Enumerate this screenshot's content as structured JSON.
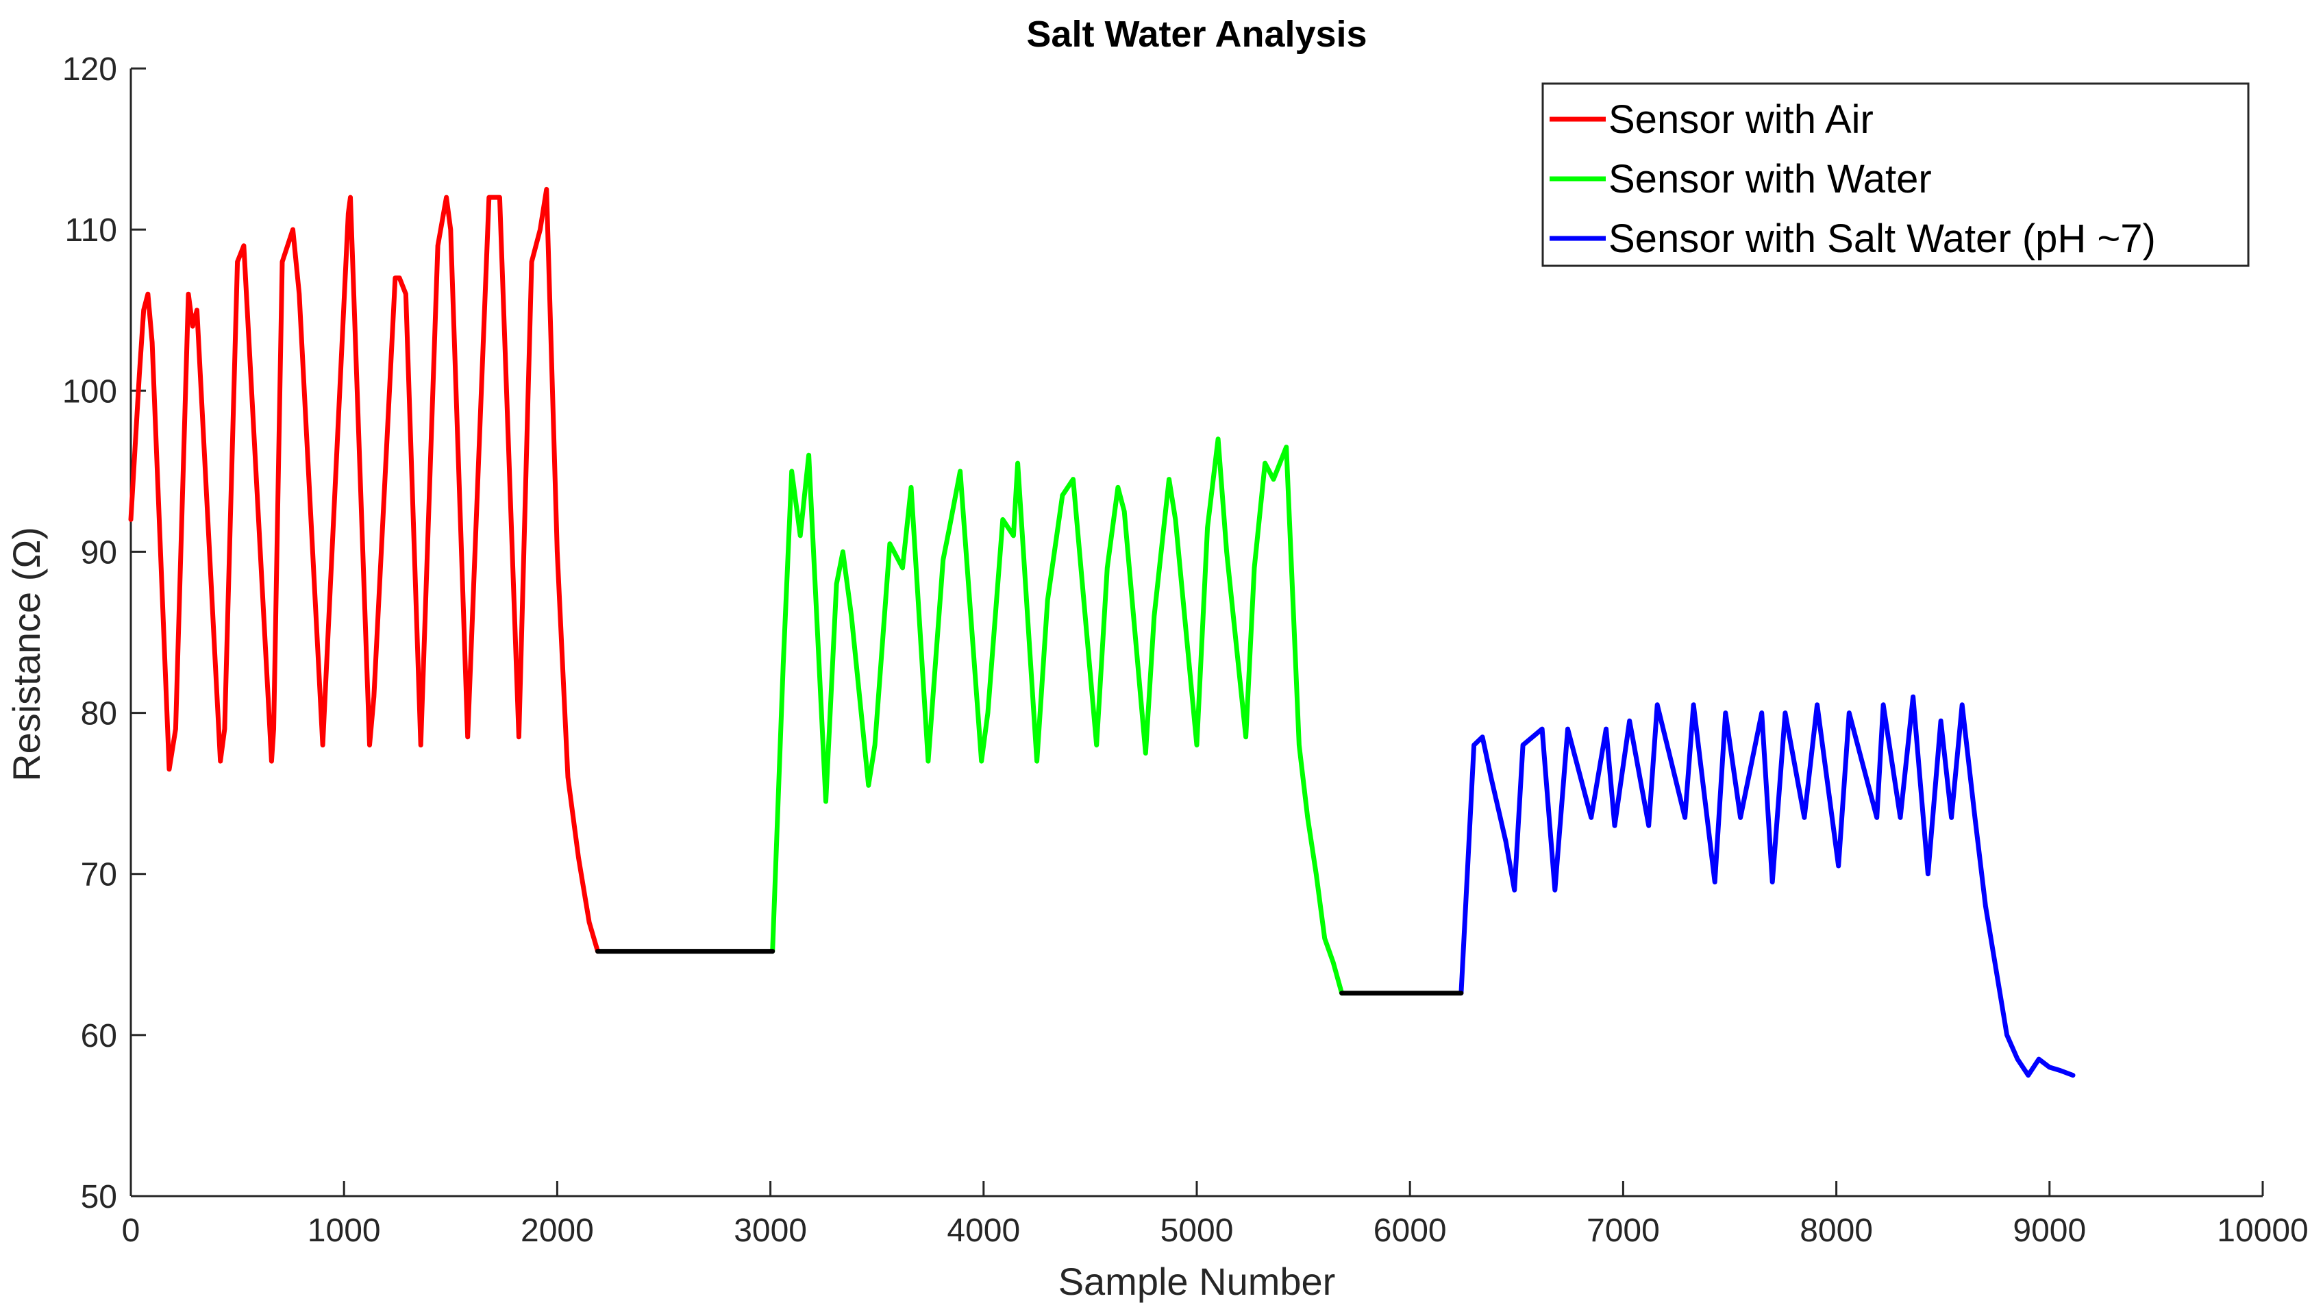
{
  "chart_data": {
    "type": "line",
    "title": "Salt Water Analysis",
    "xlabel": "Sample Number",
    "ylabel": "Resistance (Ω)",
    "xlim": [
      0,
      10000
    ],
    "ylim": [
      50,
      120
    ],
    "xticks": [
      0,
      1000,
      2000,
      3000,
      4000,
      5000,
      6000,
      7000,
      8000,
      9000,
      10000
    ],
    "yticks": [
      50,
      60,
      70,
      80,
      90,
      100,
      110,
      120
    ],
    "grid": false,
    "legend_position": "top-right",
    "series": [
      {
        "name": "Sensor with Air",
        "color": "#ff0000",
        "x": [
          0,
          40,
          60,
          80,
          100,
          180,
          210,
          270,
          290,
          310,
          420,
          440,
          500,
          530,
          660,
          670,
          710,
          760,
          790,
          900,
          1020,
          1030,
          1120,
          1140,
          1240,
          1260,
          1290,
          1360,
          1440,
          1480,
          1500,
          1580,
          1680,
          1730,
          1820,
          1880,
          1920,
          1950,
          2000,
          2050,
          2100,
          2150,
          2190
        ],
        "y": [
          92,
          101,
          105,
          106,
          103,
          76.5,
          79,
          106,
          104,
          105,
          77,
          79,
          108,
          109,
          77,
          79,
          108,
          110,
          106,
          78,
          111,
          112,
          78,
          81,
          107,
          107,
          106,
          78,
          109,
          112,
          110,
          78.5,
          112,
          112,
          78.5,
          108,
          110,
          112.5,
          90,
          76,
          71,
          67,
          65.2
        ]
      },
      {
        "name": "Sensor with Water",
        "color": "#00ff00",
        "x": [
          3010,
          3060,
          3100,
          3140,
          3180,
          3260,
          3310,
          3340,
          3380,
          3460,
          3490,
          3560,
          3620,
          3660,
          3740,
          3810,
          3840,
          3890,
          3990,
          4020,
          4090,
          4140,
          4160,
          4250,
          4300,
          4370,
          4420,
          4530,
          4580,
          4630,
          4660,
          4760,
          4800,
          4870,
          4900,
          5000,
          5050,
          5100,
          5140,
          5230,
          5270,
          5320,
          5360,
          5420,
          5480,
          5520,
          5560,
          5600,
          5640,
          5680
        ],
        "y": [
          65.2,
          83,
          95,
          91,
          96,
          74.5,
          88,
          90,
          86,
          75.5,
          78,
          90.5,
          89,
          94,
          77,
          89.5,
          91.5,
          95,
          77,
          80,
          92,
          91,
          95.5,
          77,
          87,
          93.5,
          94.5,
          78,
          89,
          94,
          92.5,
          77.5,
          86,
          94.5,
          92,
          78,
          91.5,
          97,
          90,
          78.5,
          89,
          95.5,
          94.5,
          96.5,
          78,
          73.5,
          70,
          66,
          64.5,
          62.6
        ]
      },
      {
        "name": "Sensor with Salt Water (pH ~7)",
        "color": "#0000ff",
        "x": [
          6240,
          6300,
          6340,
          6380,
          6450,
          6490,
          6530,
          6620,
          6680,
          6740,
          6850,
          6920,
          6960,
          7030,
          7120,
          7160,
          7290,
          7330,
          7430,
          7480,
          7550,
          7650,
          7700,
          7760,
          7850,
          7910,
          8010,
          8060,
          8190,
          8220,
          8300,
          8360,
          8430,
          8490,
          8540,
          8590,
          8650,
          8700,
          8750,
          8800,
          8850,
          8900,
          8950,
          9000,
          9050,
          9110
        ],
        "y": [
          62.6,
          78,
          78.5,
          76,
          72,
          69,
          78,
          79,
          69,
          79,
          73.5,
          79,
          73,
          79.5,
          73,
          80.5,
          73.5,
          80.5,
          69.5,
          80,
          73.5,
          80,
          69.5,
          80,
          73.5,
          80.5,
          70.5,
          80,
          73.5,
          80.5,
          73.5,
          81,
          70,
          79.5,
          73.5,
          80.5,
          73.5,
          68,
          64,
          60,
          58.5,
          57.5,
          58.5,
          58,
          57.8,
          57.5
        ]
      },
      {
        "name": "",
        "color": "#000000",
        "x": [
          2190,
          3010
        ],
        "y": [
          65.2,
          65.2
        ]
      },
      {
        "name": "",
        "color": "#000000",
        "x": [
          5680,
          6240
        ],
        "y": [
          62.6,
          62.6
        ]
      }
    ]
  }
}
